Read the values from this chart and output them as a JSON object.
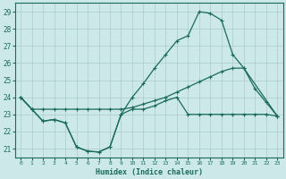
{
  "xlabel": "Humidex (Indice chaleur)",
  "bg_color": "#cce8e8",
  "grid_color": "#aacccc",
  "line_color": "#1a6b5a",
  "xlim": [
    -0.5,
    23.5
  ],
  "ylim": [
    20.5,
    29.5
  ],
  "yticks": [
    21,
    22,
    23,
    24,
    25,
    26,
    27,
    28,
    29
  ],
  "xticks": [
    0,
    1,
    2,
    3,
    4,
    5,
    6,
    7,
    8,
    9,
    10,
    11,
    12,
    13,
    14,
    15,
    16,
    17,
    18,
    19,
    20,
    21,
    22,
    23
  ],
  "line1_x": [
    0,
    1,
    2,
    3,
    4,
    5,
    6,
    7,
    8,
    9,
    10,
    11,
    12,
    13,
    14,
    15,
    16,
    17,
    18,
    19,
    20,
    21,
    22,
    23
  ],
  "line1_y": [
    24.0,
    23.3,
    22.6,
    22.7,
    22.5,
    21.1,
    20.85,
    20.8,
    21.1,
    23.0,
    23.3,
    23.3,
    23.5,
    23.8,
    24.0,
    23.0,
    23.0,
    23.0,
    23.0,
    23.0,
    23.0,
    23.0,
    23.0,
    22.9
  ],
  "line2_x": [
    0,
    1,
    2,
    3,
    4,
    5,
    6,
    7,
    8,
    9,
    10,
    11,
    12,
    13,
    14,
    15,
    16,
    17,
    18,
    19,
    20,
    21,
    22,
    23
  ],
  "line2_y": [
    24.0,
    23.3,
    22.6,
    22.7,
    22.5,
    21.1,
    20.85,
    20.8,
    21.1,
    23.0,
    24.0,
    24.8,
    25.7,
    26.5,
    27.3,
    27.6,
    29.0,
    28.9,
    28.5,
    26.5,
    25.7,
    null,
    null,
    22.9
  ],
  "line3_x": [
    0,
    1,
    2,
    3,
    4,
    5,
    6,
    7,
    8,
    9,
    10,
    11,
    12,
    13,
    14,
    15,
    16,
    17,
    18,
    19,
    20,
    21,
    22,
    23
  ],
  "line3_y": [
    24.0,
    23.3,
    23.3,
    23.3,
    23.3,
    23.3,
    23.3,
    23.3,
    23.3,
    23.3,
    23.4,
    23.6,
    23.8,
    24.0,
    24.3,
    24.6,
    24.9,
    25.2,
    25.5,
    25.7,
    25.7,
    24.5,
    23.7,
    22.9
  ]
}
